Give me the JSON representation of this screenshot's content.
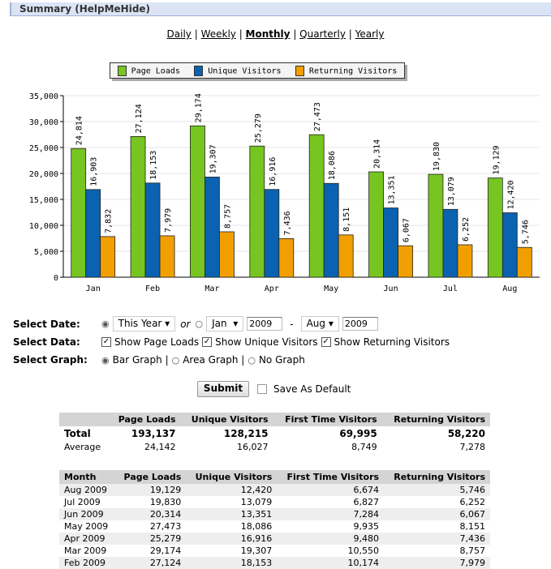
{
  "header": {
    "title": "Summary (HelpMeHide)"
  },
  "periods": [
    {
      "label": "Daily",
      "active": false
    },
    {
      "label": "Weekly",
      "active": false
    },
    {
      "label": "Monthly",
      "active": true
    },
    {
      "label": "Quarterly",
      "active": false
    },
    {
      "label": "Yearly",
      "active": false
    }
  ],
  "colors": {
    "page_loads": "#77c520",
    "unique": "#0a62b0",
    "returning": "#f19f00"
  },
  "chart_data": {
    "type": "bar",
    "categories": [
      "Jan",
      "Feb",
      "Mar",
      "Apr",
      "May",
      "Jun",
      "Jul",
      "Aug"
    ],
    "series": [
      {
        "name": "Page Loads",
        "values": [
          24814,
          27124,
          29174,
          25279,
          27473,
          20314,
          19830,
          19129
        ]
      },
      {
        "name": "Unique Visitors",
        "values": [
          16903,
          18153,
          19307,
          16916,
          18086,
          13351,
          13079,
          12420
        ]
      },
      {
        "name": "Returning Visitors",
        "values": [
          7832,
          7979,
          8757,
          7436,
          8151,
          6067,
          6252,
          5746
        ]
      }
    ],
    "ylim": [
      0,
      35000
    ],
    "yticks": [
      0,
      5000,
      10000,
      15000,
      20000,
      25000,
      30000,
      35000
    ],
    "grid": true,
    "legend": "top-center",
    "data_labels": true
  },
  "form": {
    "select_date": "Select Date:",
    "this_year": "This Year",
    "or": "or",
    "from_month": "Jan",
    "from_year": "2009",
    "dash": "-",
    "to_month": "Aug",
    "to_year": "2009",
    "select_data": "Select Data:",
    "show_page_loads": "Show Page Loads",
    "show_unique": "Show Unique Visitors",
    "show_returning": "Show Returning Visitors",
    "select_graph": "Select Graph:",
    "bar": "Bar Graph |",
    "area": "Area Graph |",
    "none": "No Graph",
    "submit": "Submit",
    "save_default": "Save As Default"
  },
  "summary": {
    "headers": [
      "",
      "Page Loads",
      "Unique Visitors",
      "First Time Visitors",
      "Returning Visitors"
    ],
    "rows": [
      [
        "Total",
        "193,137",
        "128,215",
        "69,995",
        "58,220"
      ],
      [
        "Average",
        "24,142",
        "16,027",
        "8,749",
        "7,278"
      ]
    ]
  },
  "monthly": {
    "headers": [
      "Month",
      "Page Loads",
      "Unique Visitors",
      "First Time Visitors",
      "Returning Visitors"
    ],
    "rows": [
      [
        "Aug 2009",
        "19,129",
        "12,420",
        "6,674",
        "5,746"
      ],
      [
        "Jul 2009",
        "19,830",
        "13,079",
        "6,827",
        "6,252"
      ],
      [
        "Jun 2009",
        "20,314",
        "13,351",
        "7,284",
        "6,067"
      ],
      [
        "May 2009",
        "27,473",
        "18,086",
        "9,935",
        "8,151"
      ],
      [
        "Apr 2009",
        "25,279",
        "16,916",
        "9,480",
        "7,436"
      ],
      [
        "Mar 2009",
        "29,174",
        "19,307",
        "10,550",
        "8,757"
      ],
      [
        "Feb 2009",
        "27,124",
        "18,153",
        "10,174",
        "7,979"
      ]
    ]
  }
}
